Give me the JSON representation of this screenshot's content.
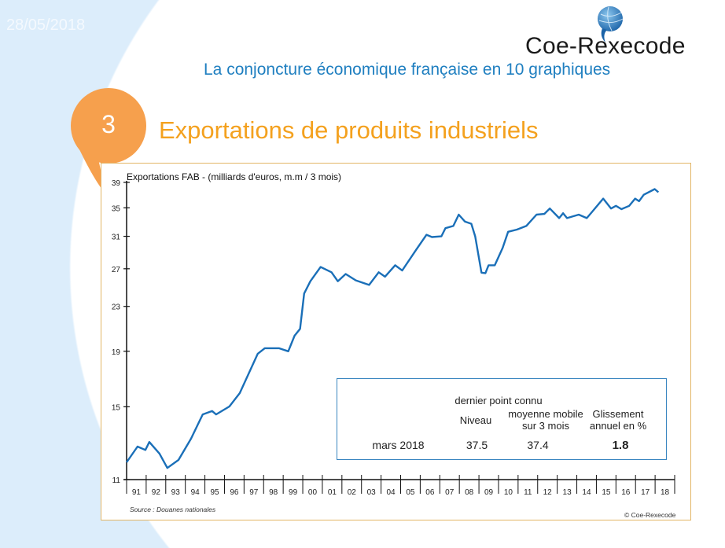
{
  "date": "28/05/2018",
  "brand": "Coe-Rexecode",
  "subtitle": "La conjoncture économique française en 10 graphiques",
  "section_number": "3",
  "section_title": "Exportations de produits industriels",
  "colors": {
    "accent_orange": "#f6a04d",
    "title_orange": "#f4a11e",
    "line_blue": "#1a6fb8",
    "subtitle_blue": "#1f7fc0",
    "frame": "#e2b565"
  },
  "stats": {
    "header": "dernier point connu",
    "col_niveau": "Niveau",
    "col_mm": "moyenne mobile sur 3 mois",
    "col_mm_1": "moyenne mobile",
    "col_mm_2": "sur 3 mois",
    "col_gliss_1": "Glissement",
    "col_gliss_2": "annuel en %",
    "row_label": "mars 2018",
    "niveau": "37.5",
    "mm": "37.4",
    "gliss": "1.8"
  },
  "source": "Source : Douanes nationales",
  "copyright": "© Coe-Rexecode",
  "chart_data": {
    "type": "line",
    "title": "Exportations FAB - (milliards d'euros, m.m / 3 mois)",
    "xlabel": "",
    "ylabel": "",
    "yscale": "log",
    "ylim": [
      11,
      39
    ],
    "yticks": [
      11,
      15,
      19,
      23,
      27,
      31,
      35,
      39
    ],
    "xlim": [
      1991,
      2019
    ],
    "xtick_labels": [
      "91",
      "92",
      "93",
      "94",
      "95",
      "96",
      "97",
      "98",
      "99",
      "00",
      "01",
      "02",
      "03",
      "04",
      "05",
      "06",
      "07",
      "08",
      "09",
      "10",
      "11",
      "12",
      "13",
      "14",
      "15",
      "16",
      "17",
      "18"
    ],
    "series": [
      {
        "name": "Exportations FAB",
        "x": [
          1991.0,
          1991.56,
          1991.96,
          1992.16,
          1992.68,
          1993.08,
          1993.65,
          1994.29,
          1994.89,
          1995.37,
          1995.57,
          1996.25,
          1996.78,
          1997.7,
          1998.06,
          1998.78,
          1999.26,
          1999.58,
          1999.86,
          2000.07,
          2000.39,
          2000.91,
          2001.47,
          2001.79,
          2002.19,
          2002.71,
          2003.39,
          2003.88,
          2004.2,
          2004.72,
          2005.08,
          2005.8,
          2006.32,
          2006.6,
          2007.08,
          2007.29,
          2007.69,
          2007.97,
          2008.29,
          2008.61,
          2008.81,
          2009.13,
          2009.33,
          2009.49,
          2009.81,
          2010.21,
          2010.49,
          2010.94,
          2011.42,
          2011.94,
          2012.34,
          2012.62,
          2013.1,
          2013.3,
          2013.5,
          2014.1,
          2014.51,
          2014.75,
          2015.35,
          2015.75,
          2016.0,
          2016.28,
          2016.68,
          2016.98,
          2017.18,
          2017.42,
          2017.98,
          2018.17
        ],
        "y": [
          11.84,
          12.66,
          12.48,
          12.91,
          12.29,
          11.56,
          11.96,
          13.09,
          14.52,
          14.73,
          14.52,
          15.02,
          15.9,
          18.8,
          19.25,
          19.25,
          19.0,
          20.3,
          20.9,
          24.3,
          25.6,
          27.2,
          26.6,
          25.6,
          26.4,
          25.7,
          25.2,
          26.6,
          26.1,
          27.4,
          26.8,
          29.3,
          31.2,
          30.9,
          31.0,
          32.1,
          32.4,
          34.0,
          33.0,
          32.7,
          31.0,
          26.55,
          26.5,
          27.4,
          27.4,
          29.5,
          31.6,
          31.9,
          32.4,
          34.0,
          34.1,
          34.9,
          33.5,
          34.2,
          33.5,
          34.0,
          33.5,
          34.3,
          36.4,
          34.9,
          35.3,
          34.8,
          35.3,
          36.4,
          36.0,
          37.0,
          37.9,
          37.4
        ]
      }
    ]
  }
}
